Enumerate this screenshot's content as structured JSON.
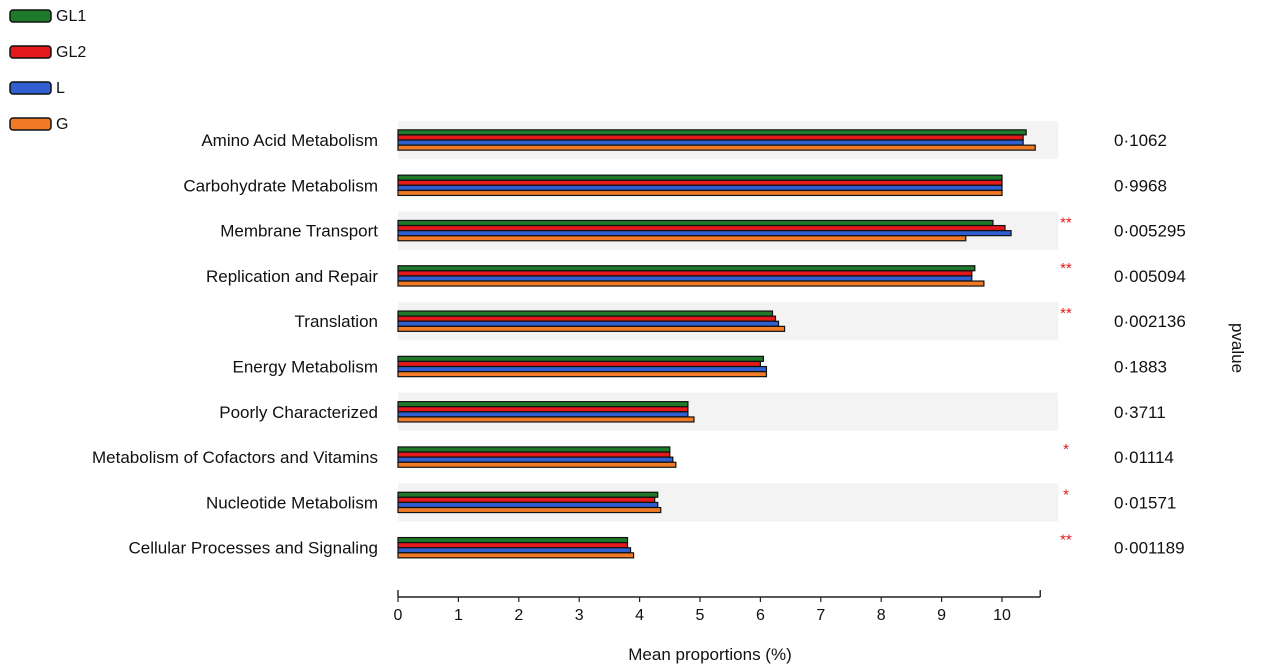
{
  "chart_data": {
    "type": "bar",
    "orientation": "horizontal",
    "categories": [
      "Amino Acid Metabolism",
      "Carbohydrate Metabolism",
      "Membrane Transport",
      "Replication and Repair",
      "Translation",
      "Energy Metabolism",
      "Poorly Characterized",
      "Metabolism of Cofactors and Vitamins",
      "Nucleotide Metabolism",
      "Cellular Processes and Signaling"
    ],
    "series": [
      {
        "name": "GL1",
        "color": "#1e7a2a",
        "values": [
          10.4,
          10.0,
          9.85,
          9.55,
          6.2,
          6.05,
          4.8,
          4.5,
          4.3,
          3.8
        ]
      },
      {
        "name": "GL2",
        "color": "#e3191c",
        "values": [
          10.35,
          10.0,
          10.05,
          9.5,
          6.25,
          6.0,
          4.8,
          4.5,
          4.25,
          3.8
        ]
      },
      {
        "name": "L",
        "color": "#2f5fd0",
        "values": [
          10.35,
          10.0,
          10.15,
          9.5,
          6.3,
          6.1,
          4.8,
          4.55,
          4.3,
          3.85
        ]
      },
      {
        "name": "G",
        "color": "#f07a26",
        "values": [
          10.55,
          10.0,
          9.4,
          9.7,
          6.4,
          6.1,
          4.9,
          4.6,
          4.35,
          3.9
        ]
      }
    ],
    "pvalues": [
      "0·1062",
      "0·9968",
      "0·005295",
      "0·005094",
      "0·002136",
      "0·1883",
      "0·3711",
      "0·01114",
      "0·01571",
      "0·001189"
    ],
    "significance": [
      "",
      "",
      "**",
      "**",
      "**",
      "",
      "",
      "*",
      "*",
      "**"
    ],
    "significance_color": "#e3191c",
    "xlabel": "Mean proportions (%)",
    "pvalue_label": "pvalue",
    "xlim": [
      0,
      10.6
    ],
    "xticks": [
      "0",
      "1",
      "2",
      "3",
      "4",
      "5",
      "6",
      "7",
      "8",
      "9",
      "10"
    ],
    "legend_position": "top-left",
    "row_shading": "alternating light grey bands"
  }
}
